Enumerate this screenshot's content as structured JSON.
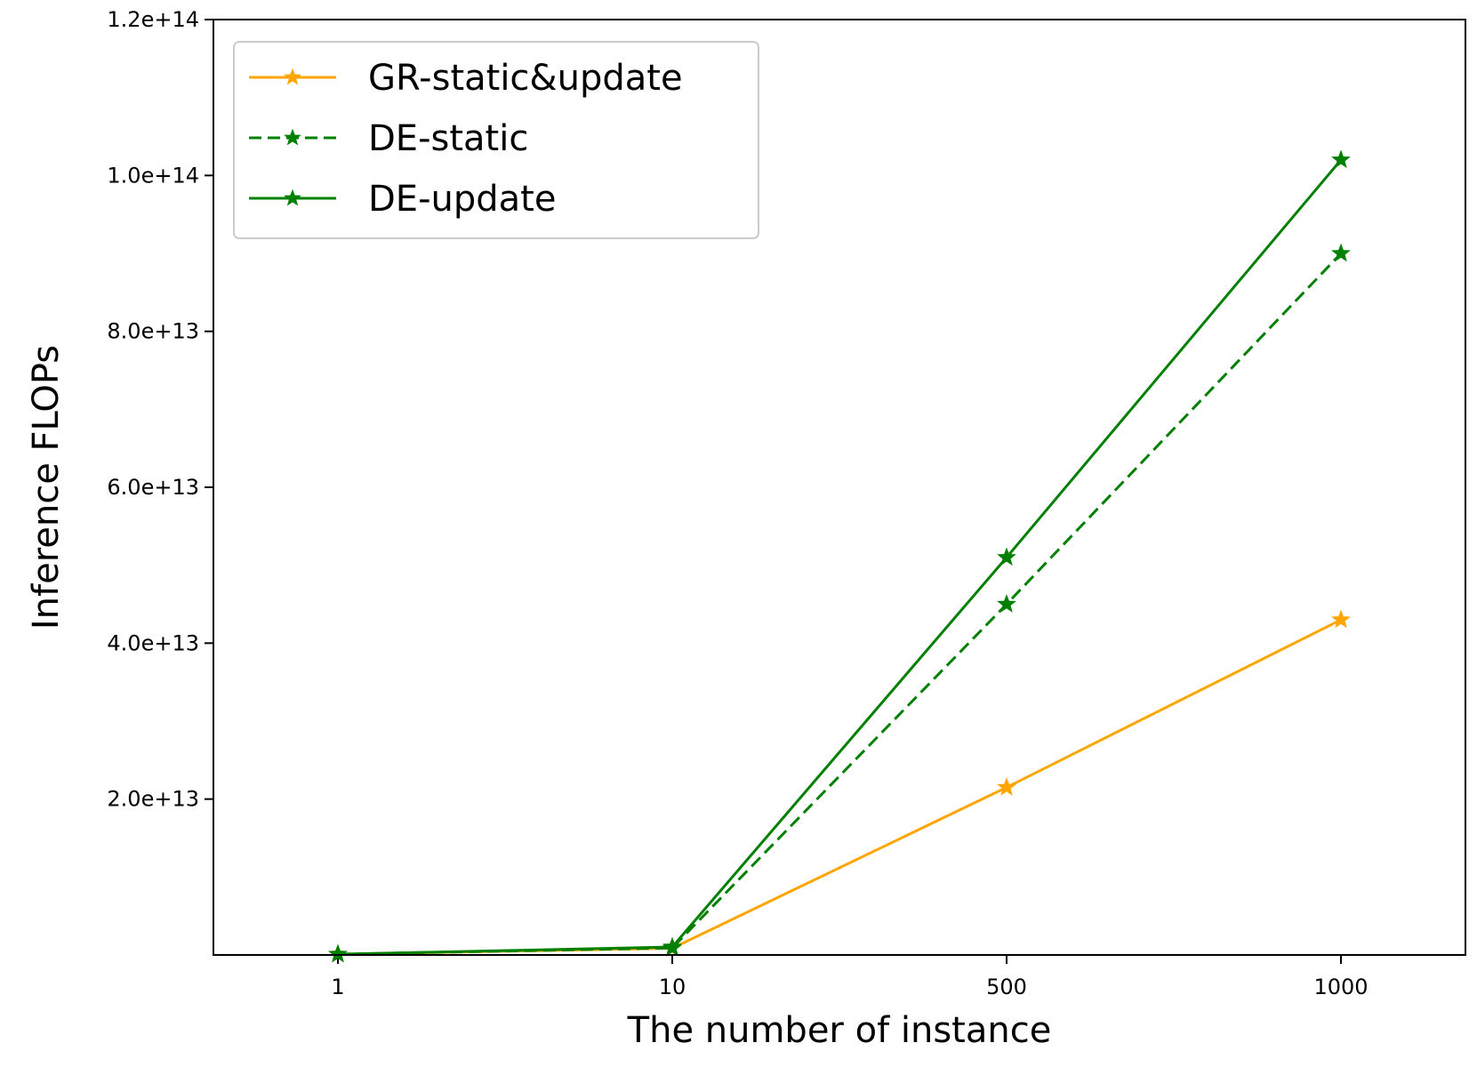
{
  "chart_data": {
    "type": "line",
    "title": "",
    "xlabel": "The number of instance",
    "ylabel": "Inference FLOPs",
    "categories": [
      "1",
      "10",
      "500",
      "1000"
    ],
    "ylim": [
      0,
      120000000000000.0
    ],
    "yticks": [
      20000000000000.0,
      40000000000000.0,
      60000000000000.0,
      80000000000000.0,
      100000000000000.0,
      120000000000000.0
    ],
    "ytick_labels": [
      "2.0e+13",
      "4.0e+13",
      "6.0e+13",
      "8.0e+13",
      "1.0e+14",
      "1.2e+14"
    ],
    "grid": false,
    "legend_position": "top-left",
    "series": [
      {
        "name": "GR-static&update",
        "values": [
          100000000000.0,
          860000000000.0,
          21500000000000.0,
          43000000000000.0
        ],
        "color": "#FFA500",
        "linestyle": "solid",
        "marker": "star"
      },
      {
        "name": "DE-static",
        "values": [
          100000000000.0,
          900000000000.0,
          45000000000000.0,
          90000000000000.0
        ],
        "color": "#008000",
        "linestyle": "dashed",
        "marker": "star"
      },
      {
        "name": "DE-update",
        "values": [
          100000000000.0,
          1020000000000.0,
          51000000000000.0,
          102000000000000.0
        ],
        "color": "#008000",
        "linestyle": "solid",
        "marker": "star"
      }
    ]
  }
}
